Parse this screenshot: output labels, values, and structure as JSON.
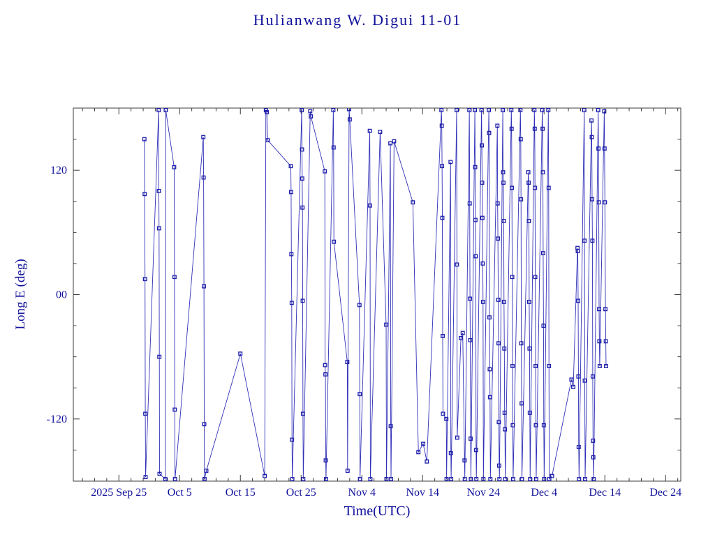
{
  "page": {
    "background": "#ffffff"
  },
  "chart_data": {
    "type": "line",
    "title": "Hulianwang W. Digui 11-01",
    "xlabel": "Time(UTC)",
    "ylabel": "Long E (deg)",
    "x_unit": "days since 2025 Sep 25",
    "xlim": [
      -7.5,
      92.5
    ],
    "ylim": [
      -180,
      180
    ],
    "grid": false,
    "legend": "none",
    "marker": "square",
    "line_color": "#3030b8",
    "marker_color": "#1d1daa",
    "frame_color": "#3c3c3c",
    "text_color": "#10109c",
    "x_minor_step_days": 2,
    "y_minor_step_deg": 30,
    "x_ticks": [
      {
        "day": 0,
        "label": "2025 Sep 25"
      },
      {
        "day": 10,
        "label": "Oct 5"
      },
      {
        "day": 20,
        "label": "Oct 15"
      },
      {
        "day": 30,
        "label": "Oct 25"
      },
      {
        "day": 40,
        "label": "Nov 4"
      },
      {
        "day": 50,
        "label": "Nov 14"
      },
      {
        "day": 60,
        "label": "Nov 24"
      },
      {
        "day": 70,
        "label": "Dec 4"
      },
      {
        "day": 80,
        "label": "Dec 14"
      },
      {
        "day": 90,
        "label": "Dec 24"
      }
    ],
    "y_ticks": [
      {
        "value": 120,
        "label": "120"
      },
      {
        "value": 0,
        "label": "00"
      },
      {
        "value": -120,
        "label": "-120"
      }
    ],
    "series": [
      {
        "name": "longitude-track",
        "points": [
          [
            4.2,
            150
          ],
          [
            4.25,
            97
          ],
          [
            4.3,
            15
          ],
          [
            4.35,
            -115
          ],
          [
            4.4,
            -176
          ],
          [
            6.55,
            178
          ],
          [
            6.58,
            100
          ],
          [
            6.62,
            64
          ],
          [
            6.66,
            -60
          ],
          [
            6.7,
            -173
          ],
          [
            7.65,
            -178
          ],
          [
            7.72,
            178
          ],
          [
            9.1,
            123
          ],
          [
            9.15,
            17
          ],
          [
            9.2,
            -111
          ],
          [
            9.25,
            -178
          ],
          [
            13.9,
            152
          ],
          [
            13.95,
            113
          ],
          [
            14.0,
            8
          ],
          [
            14.05,
            -125
          ],
          [
            14.1,
            -178
          ],
          [
            14.4,
            -170
          ],
          [
            20.0,
            -57
          ],
          [
            24.0,
            -175
          ],
          [
            24.2,
            178
          ],
          [
            24.35,
            176
          ],
          [
            24.5,
            149
          ],
          [
            28.3,
            124
          ],
          [
            28.35,
            99
          ],
          [
            28.4,
            39
          ],
          [
            28.45,
            -8
          ],
          [
            28.5,
            -140
          ],
          [
            28.55,
            -178
          ],
          [
            30.1,
            178
          ],
          [
            30.14,
            140
          ],
          [
            30.18,
            112
          ],
          [
            30.22,
            84
          ],
          [
            30.26,
            -6
          ],
          [
            30.3,
            -115
          ],
          [
            30.35,
            -178
          ],
          [
            31.5,
            177
          ],
          [
            31.6,
            172
          ],
          [
            33.9,
            119
          ],
          [
            33.95,
            -68
          ],
          [
            34.0,
            -77
          ],
          [
            34.05,
            -160
          ],
          [
            34.1,
            -178
          ],
          [
            35.3,
            178
          ],
          [
            35.35,
            142
          ],
          [
            35.4,
            51
          ],
          [
            37.6,
            -65
          ],
          [
            37.65,
            -170
          ],
          [
            37.9,
            179
          ],
          [
            38.0,
            169
          ],
          [
            39.6,
            -10
          ],
          [
            39.65,
            -96
          ],
          [
            39.7,
            -178
          ],
          [
            41.3,
            158
          ],
          [
            41.35,
            86
          ],
          [
            41.4,
            -178
          ],
          [
            43.0,
            157
          ],
          [
            44.0,
            -29
          ],
          [
            44.05,
            -178
          ],
          [
            44.7,
            146
          ],
          [
            44.75,
            -127
          ],
          [
            44.8,
            -178
          ],
          [
            45.3,
            148
          ],
          [
            48.4,
            89
          ],
          [
            49.3,
            -152
          ],
          [
            50.1,
            -144
          ],
          [
            50.7,
            -161
          ],
          [
            53.1,
            178
          ],
          [
            53.15,
            163
          ],
          [
            53.2,
            124
          ],
          [
            53.25,
            74
          ],
          [
            53.3,
            -40
          ],
          [
            53.35,
            -115
          ],
          [
            53.9,
            -120
          ],
          [
            53.95,
            -178
          ],
          [
            54.6,
            128
          ],
          [
            54.65,
            -153
          ],
          [
            54.7,
            -178
          ],
          [
            55.6,
            178
          ],
          [
            55.65,
            29
          ],
          [
            55.7,
            -138
          ],
          [
            56.3,
            -42
          ],
          [
            56.6,
            -37
          ],
          [
            56.9,
            -160
          ],
          [
            56.95,
            -178
          ],
          [
            57.7,
            178
          ],
          [
            57.75,
            88
          ],
          [
            57.8,
            -4
          ],
          [
            57.85,
            -44
          ],
          [
            57.9,
            -139
          ],
          [
            57.95,
            -178
          ],
          [
            58.6,
            178
          ],
          [
            58.65,
            123
          ],
          [
            58.7,
            72
          ],
          [
            58.75,
            37
          ],
          [
            58.8,
            -150
          ],
          [
            58.85,
            -178
          ],
          [
            59.7,
            178
          ],
          [
            59.75,
            144
          ],
          [
            59.8,
            108
          ],
          [
            59.85,
            74
          ],
          [
            59.9,
            30
          ],
          [
            59.95,
            -7
          ],
          [
            60.0,
            -178
          ],
          [
            60.9,
            178
          ],
          [
            60.95,
            156
          ],
          [
            61.0,
            -22
          ],
          [
            61.05,
            -72
          ],
          [
            61.1,
            -99
          ],
          [
            61.15,
            -178
          ],
          [
            62.3,
            163
          ],
          [
            62.35,
            88
          ],
          [
            62.4,
            54
          ],
          [
            62.45,
            -5
          ],
          [
            62.5,
            -47
          ],
          [
            62.55,
            -123
          ],
          [
            62.6,
            -165
          ],
          [
            62.65,
            -178
          ],
          [
            63.2,
            178
          ],
          [
            63.25,
            118
          ],
          [
            63.3,
            108
          ],
          [
            63.35,
            71
          ],
          [
            63.4,
            -7
          ],
          [
            63.45,
            -52
          ],
          [
            63.5,
            -114
          ],
          [
            63.55,
            -130
          ],
          [
            63.6,
            -178
          ],
          [
            64.6,
            178
          ],
          [
            64.65,
            160
          ],
          [
            64.7,
            103
          ],
          [
            64.75,
            17
          ],
          [
            64.8,
            -69
          ],
          [
            64.85,
            -126
          ],
          [
            64.9,
            -178
          ],
          [
            66.1,
            178
          ],
          [
            66.15,
            150
          ],
          [
            66.2,
            92
          ],
          [
            66.25,
            -47
          ],
          [
            66.3,
            -105
          ],
          [
            66.35,
            -178
          ],
          [
            67.4,
            118
          ],
          [
            67.45,
            108
          ],
          [
            67.5,
            71
          ],
          [
            67.55,
            -7
          ],
          [
            67.6,
            -52
          ],
          [
            67.65,
            -114
          ],
          [
            67.7,
            -178
          ],
          [
            68.4,
            178
          ],
          [
            68.45,
            160
          ],
          [
            68.5,
            103
          ],
          [
            68.55,
            17
          ],
          [
            68.6,
            -69
          ],
          [
            68.65,
            -126
          ],
          [
            68.7,
            -178
          ],
          [
            69.7,
            178
          ],
          [
            69.75,
            160
          ],
          [
            69.8,
            118
          ],
          [
            69.85,
            40
          ],
          [
            69.9,
            -30
          ],
          [
            69.95,
            -126
          ],
          [
            70.0,
            -178
          ],
          [
            70.7,
            178
          ],
          [
            70.75,
            103
          ],
          [
            70.8,
            -69
          ],
          [
            70.85,
            -178
          ],
          [
            71.3,
            -175
          ],
          [
            74.5,
            -82
          ],
          [
            74.8,
            -89
          ],
          [
            75.5,
            45
          ],
          [
            75.55,
            42
          ],
          [
            75.6,
            -6
          ],
          [
            75.65,
            -79
          ],
          [
            75.7,
            -147
          ],
          [
            75.75,
            -178
          ],
          [
            76.6,
            178
          ],
          [
            76.65,
            52
          ],
          [
            76.7,
            -83
          ],
          [
            76.75,
            -178
          ],
          [
            77.8,
            168
          ],
          [
            77.85,
            152
          ],
          [
            77.9,
            92
          ],
          [
            77.95,
            52
          ],
          [
            78.0,
            -79
          ],
          [
            78.05,
            -141
          ],
          [
            78.1,
            -157
          ],
          [
            78.15,
            -178
          ],
          [
            78.9,
            178
          ],
          [
            78.95,
            141
          ],
          [
            79.0,
            89
          ],
          [
            79.05,
            -14
          ],
          [
            79.1,
            -45
          ],
          [
            79.15,
            -69
          ],
          [
            79.9,
            177
          ],
          [
            79.95,
            141
          ],
          [
            80.0,
            89
          ],
          [
            80.1,
            -14
          ],
          [
            80.15,
            -45
          ],
          [
            80.2,
            -69
          ]
        ]
      }
    ]
  }
}
